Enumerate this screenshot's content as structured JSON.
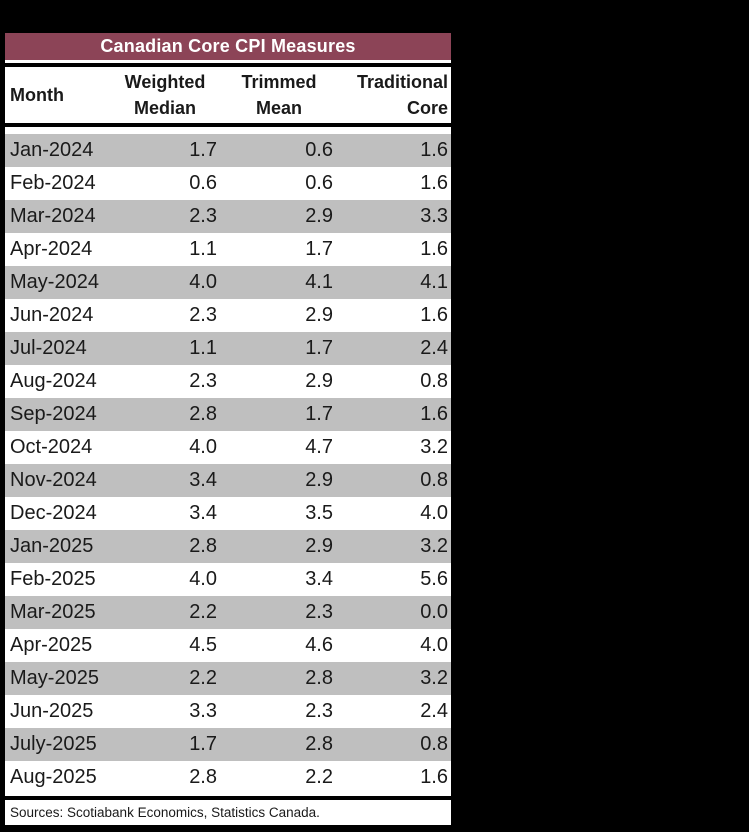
{
  "title": "Canadian Core CPI Measures",
  "header": {
    "month": "Month",
    "weighted": {
      "line1": "Weighted",
      "line2": "Median"
    },
    "trimmed": {
      "line1": "Trimmed",
      "line2": "Mean"
    },
    "traditional": {
      "line1": "Traditional",
      "line2": "Core"
    }
  },
  "footer": {
    "sources": "Sources: Scotiabank Economics, Statistics Canada."
  },
  "colors": {
    "title_bar": "#8C4457",
    "title_text": "#FFFFFF",
    "row_stripe": "#BFBFBF",
    "text": "#1A1A1A",
    "border": "#000000",
    "page_background": "#000000",
    "table_background": "#FFFFFF"
  },
  "chart_data": {
    "type": "table",
    "title": "Canadian Core CPI Measures",
    "columns": [
      "Month",
      "Weighted Median",
      "Trimmed Mean",
      "Traditional Core"
    ],
    "rows": [
      [
        "Jan-2024",
        "1.7",
        "0.6",
        "1.6"
      ],
      [
        "Feb-2024",
        "0.6",
        "0.6",
        "1.6"
      ],
      [
        "Mar-2024",
        "2.3",
        "2.9",
        "3.3"
      ],
      [
        "Apr-2024",
        "1.1",
        "1.7",
        "1.6"
      ],
      [
        "May-2024",
        "4.0",
        "4.1",
        "4.1"
      ],
      [
        "Jun-2024",
        "2.3",
        "2.9",
        "1.6"
      ],
      [
        "Jul-2024",
        "1.1",
        "1.7",
        "2.4"
      ],
      [
        "Aug-2024",
        "2.3",
        "2.9",
        "0.8"
      ],
      [
        "Sep-2024",
        "2.8",
        "1.7",
        "1.6"
      ],
      [
        "Oct-2024",
        "4.0",
        "4.7",
        "3.2"
      ],
      [
        "Nov-2024",
        "3.4",
        "2.9",
        "0.8"
      ],
      [
        "Dec-2024",
        "3.4",
        "3.5",
        "4.0"
      ],
      [
        "Jan-2025",
        "2.8",
        "2.9",
        "3.2"
      ],
      [
        "Feb-2025",
        "4.0",
        "3.4",
        "5.6"
      ],
      [
        "Mar-2025",
        "2.2",
        "2.3",
        "0.0"
      ],
      [
        "Apr-2025",
        "4.5",
        "4.6",
        "4.0"
      ],
      [
        "May-2025",
        "2.2",
        "2.8",
        "3.2"
      ],
      [
        "Jun-2025",
        "3.3",
        "2.3",
        "2.4"
      ],
      [
        "July-2025",
        "1.7",
        "2.8",
        "0.8"
      ],
      [
        "Aug-2025",
        "2.8",
        "2.2",
        "1.6"
      ]
    ],
    "source_note": "Sources: Scotiabank Economics, Statistics Canada.",
    "striping": "odd rows shaded gray starting with first data row",
    "legend_position": "none",
    "grid": false
  }
}
